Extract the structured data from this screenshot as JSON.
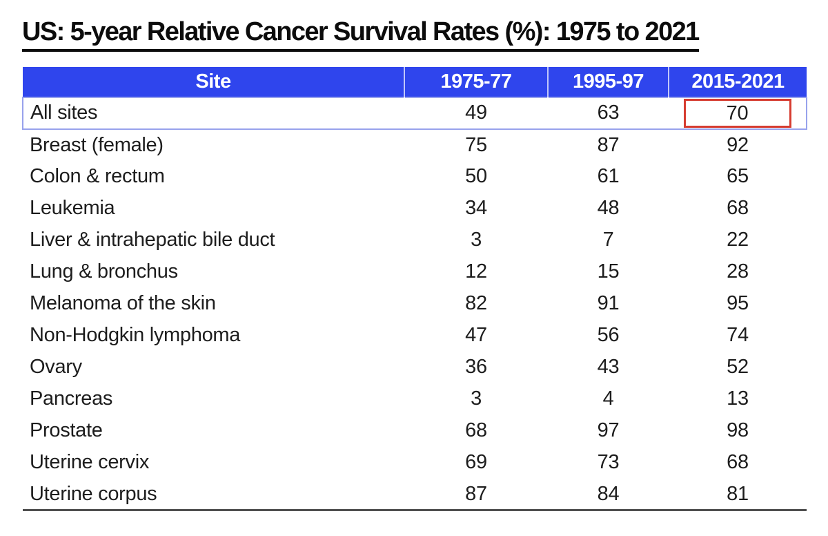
{
  "title": "US: 5-year Relative Cancer Survival Rates (%): 1975 to 2021",
  "table": {
    "columns": [
      "Site",
      "1975-77",
      "1995-97",
      "2015-2021"
    ],
    "rows": [
      {
        "site": "All sites",
        "values": [
          "49",
          "63",
          "70"
        ],
        "selected": true,
        "highlight_col": 2
      },
      {
        "site": "Breast (female)",
        "values": [
          "75",
          "87",
          "92"
        ]
      },
      {
        "site": "Colon & rectum",
        "values": [
          "50",
          "61",
          "65"
        ]
      },
      {
        "site": "Leukemia",
        "values": [
          "34",
          "48",
          "68"
        ]
      },
      {
        "site": "Liver & intrahepatic bile duct",
        "values": [
          "3",
          "7",
          "22"
        ]
      },
      {
        "site": "Lung & bronchus",
        "values": [
          "12",
          "15",
          "28"
        ]
      },
      {
        "site": "Melanoma of the skin",
        "values": [
          "82",
          "91",
          "95"
        ]
      },
      {
        "site": "Non-Hodgkin lymphoma",
        "values": [
          "47",
          "56",
          "74"
        ]
      },
      {
        "site": "Ovary",
        "values": [
          "36",
          "43",
          "52"
        ]
      },
      {
        "site": "Pancreas",
        "values": [
          "3",
          "4",
          "13"
        ]
      },
      {
        "site": "Prostate",
        "values": [
          "68",
          "97",
          "98"
        ]
      },
      {
        "site": "Uterine cervix",
        "values": [
          "69",
          "73",
          "68"
        ]
      },
      {
        "site": "Uterine corpus",
        "values": [
          "87",
          "84",
          "81"
        ]
      }
    ]
  },
  "colors": {
    "header_bg": "#2f45ed",
    "header_text": "#ffffff",
    "selected_row_outline": "#98a2ec",
    "highlight_box_red": "#d63c30",
    "bottom_border": "#4f4f4f",
    "body_text": "#1d1d1d"
  },
  "chart_data": {
    "type": "table",
    "title": "US: 5-year Relative Cancer Survival Rates (%): 1975 to 2021",
    "columns": [
      "Site",
      "1975-77",
      "1995-97",
      "2015-2021"
    ],
    "categories": [
      "All sites",
      "Breast (female)",
      "Colon & rectum",
      "Leukemia",
      "Liver & intrahepatic bile duct",
      "Lung & bronchus",
      "Melanoma of the skin",
      "Non-Hodgkin lymphoma",
      "Ovary",
      "Pancreas",
      "Prostate",
      "Uterine cervix",
      "Uterine corpus"
    ],
    "series": [
      {
        "name": "1975-77",
        "values": [
          49,
          75,
          50,
          34,
          3,
          12,
          82,
          47,
          36,
          3,
          68,
          69,
          87
        ]
      },
      {
        "name": "1995-97",
        "values": [
          63,
          87,
          61,
          48,
          7,
          15,
          91,
          56,
          43,
          4,
          97,
          73,
          84
        ]
      },
      {
        "name": "2015-2021",
        "values": [
          70,
          92,
          65,
          68,
          22,
          28,
          95,
          74,
          52,
          13,
          98,
          68,
          81
        ]
      }
    ],
    "annotations": [
      "Red rectangle highlights the All sites 2015-2021 value (70)",
      "All sites row has a light blue selection outline"
    ]
  }
}
